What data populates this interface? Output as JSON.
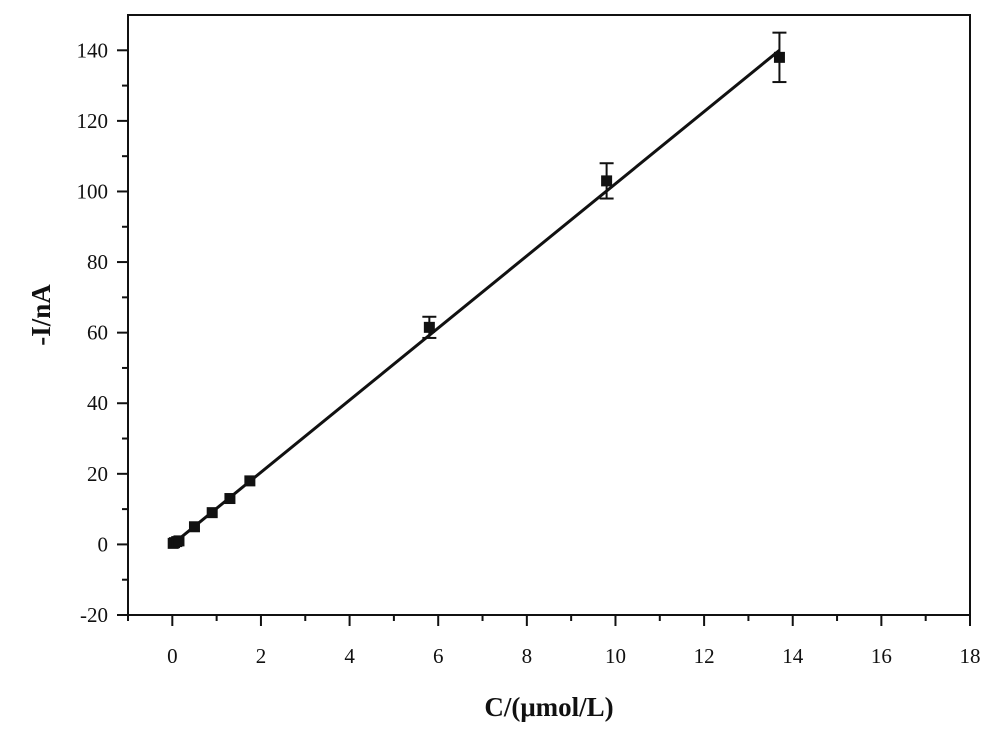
{
  "chart_data": {
    "type": "scatter",
    "title": "",
    "xlabel": "C/(μmol/L)",
    "ylabel": "-I/nA",
    "xlim": [
      -1,
      18
    ],
    "ylim": [
      -20,
      150
    ],
    "x_ticks": [
      0,
      2,
      4,
      6,
      8,
      10,
      12,
      14,
      16,
      18
    ],
    "y_ticks": [
      -20,
      0,
      20,
      40,
      60,
      80,
      100,
      120,
      140
    ],
    "grid": false,
    "legend": "none",
    "series": [
      {
        "x": [
          0.02,
          0.05,
          0.1,
          0.15,
          0.5,
          0.9,
          1.3,
          1.75,
          5.8,
          9.8,
          13.7
        ],
        "y": [
          0.3,
          0.5,
          0.8,
          1.0,
          5.0,
          9.0,
          13.0,
          18.0,
          61.5,
          103.0,
          138.0
        ],
        "error": [
          0.5,
          0.5,
          0.5,
          0.5,
          0.8,
          0.8,
          0.8,
          0.8,
          3.0,
          5.0,
          7.0
        ]
      }
    ],
    "fit_line": {
      "x": [
        0,
        13.7
      ],
      "y": [
        0.0,
        140.0
      ]
    },
    "colors": {
      "marker": "#111111",
      "line": "#111111",
      "axis": "#111111"
    }
  }
}
